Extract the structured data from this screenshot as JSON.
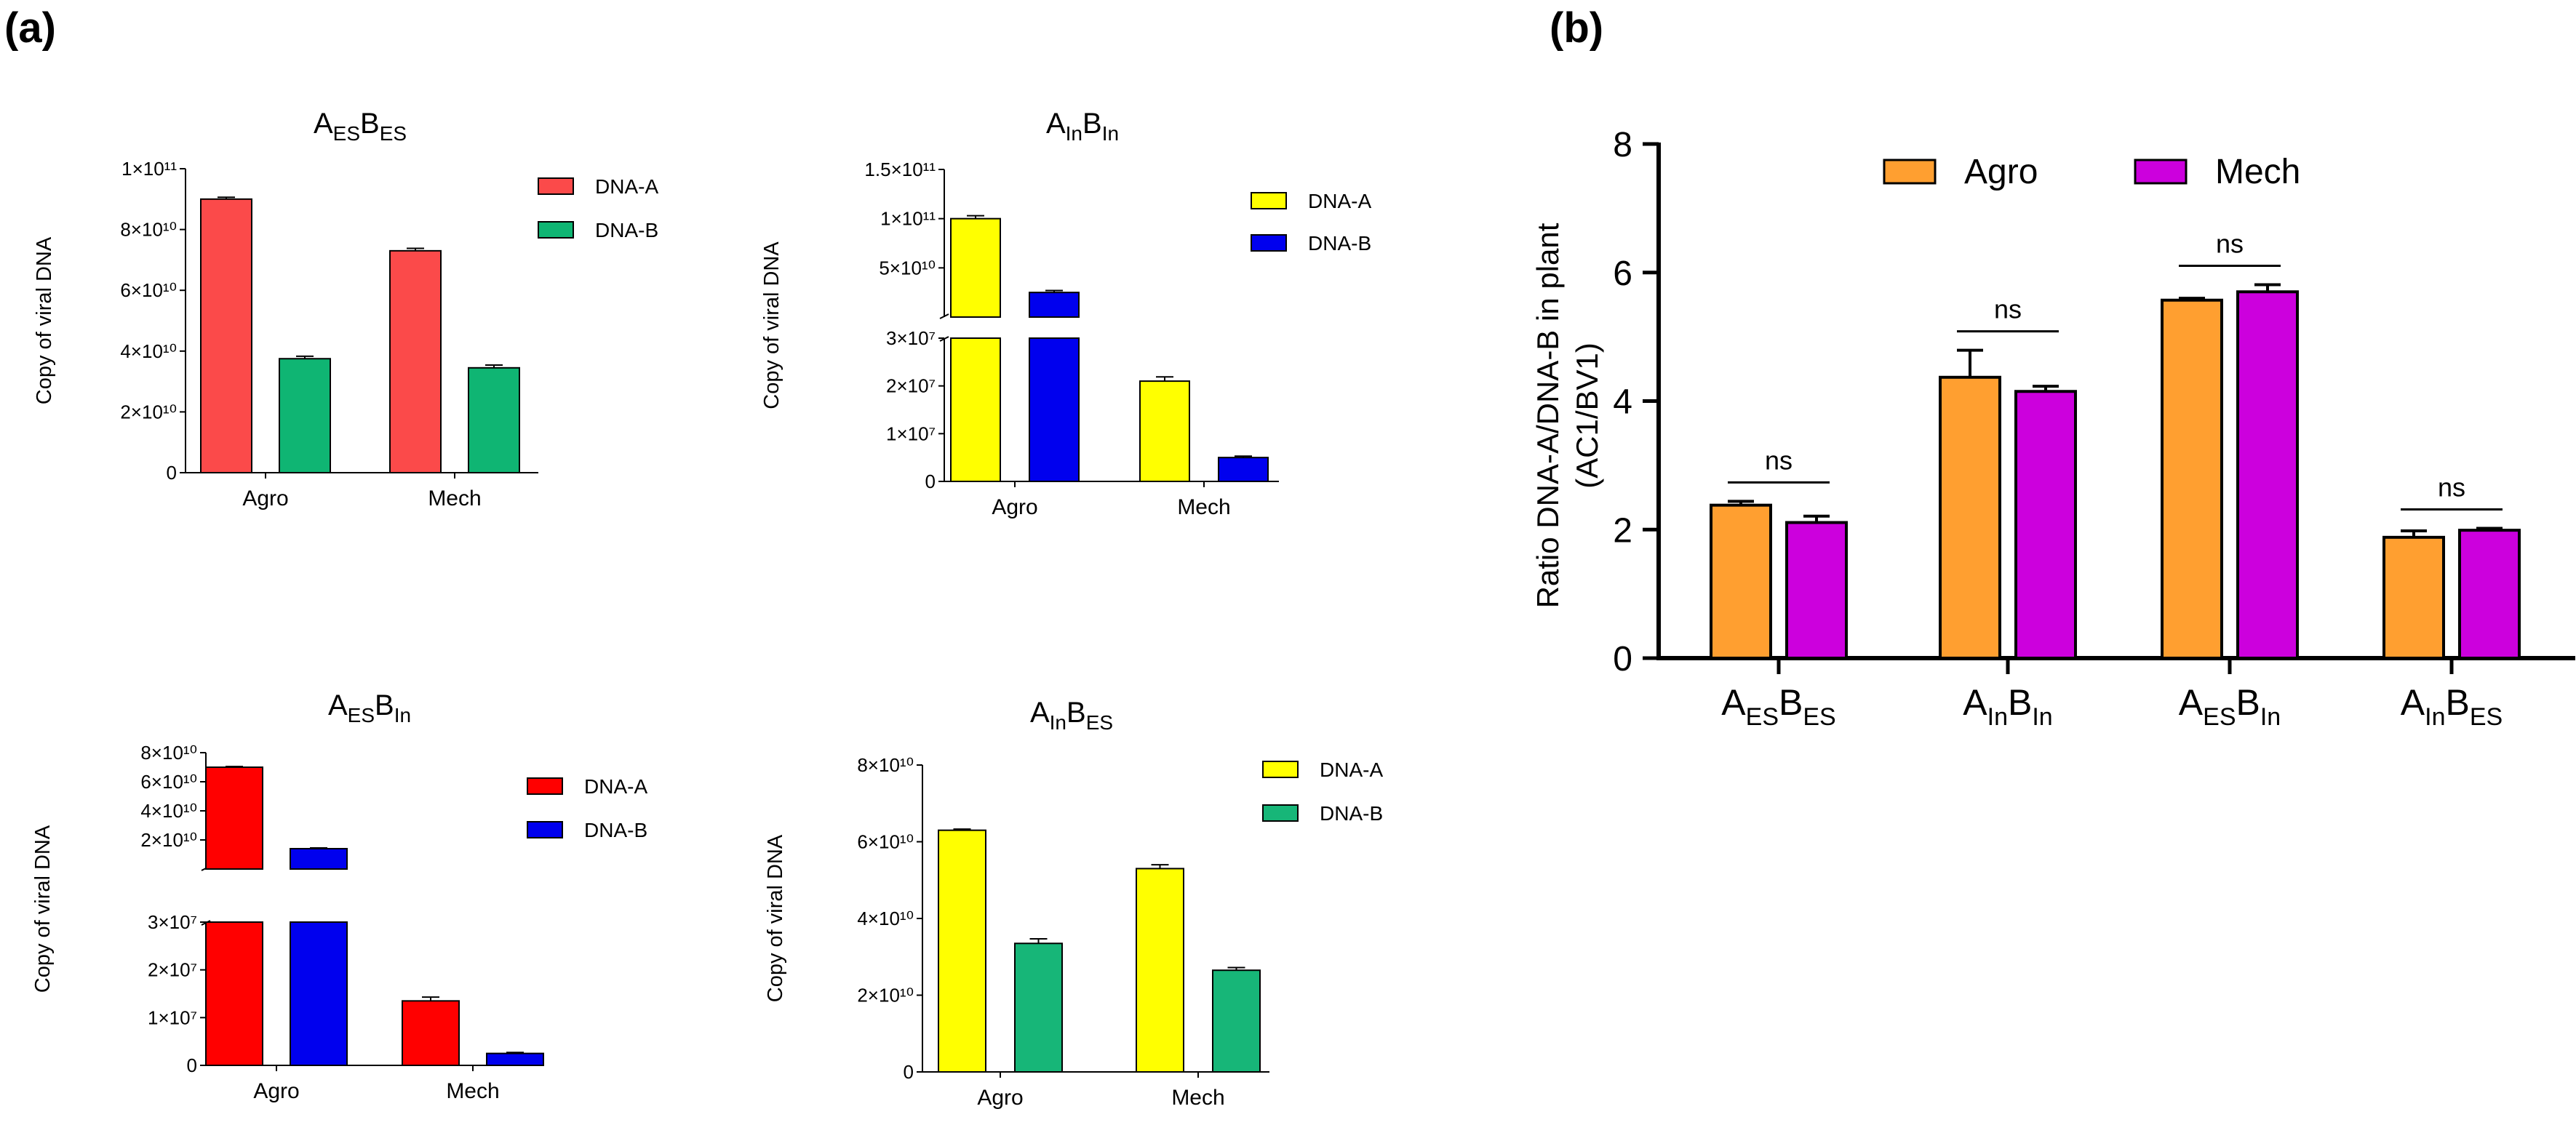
{
  "panels": {
    "a_label": "(a)",
    "b_label": "(b)"
  },
  "axis_title_copies": "Copy of viral DNA",
  "chart_data": [
    {
      "id": "aesbes",
      "type": "bar",
      "title": {
        "main1": "A",
        "sub1": "ES",
        "main2": "B",
        "sub2": "ES"
      },
      "categories": [
        "Agro",
        "Mech"
      ],
      "ylabel": "Copy of viral DNA",
      "ylim": [
        0,
        100000000000
      ],
      "yticks": [
        {
          "v": 0,
          "label": "0"
        },
        {
          "v": 20000000000,
          "label": "2×10¹⁰"
        },
        {
          "v": 40000000000,
          "label": "4×10¹⁰"
        },
        {
          "v": 60000000000,
          "label": "6×10¹⁰"
        },
        {
          "v": 80000000000,
          "label": "8×10¹⁰"
        },
        {
          "v": 100000000000,
          "label": "1×10¹¹"
        }
      ],
      "series": [
        {
          "name": "DNA-A",
          "color": "#fb4a4a",
          "values": [
            90000000000,
            73000000000
          ],
          "errors": [
            600000000,
            800000000
          ]
        },
        {
          "name": "DNA-B",
          "color": "#0fb573",
          "values": [
            37500000000,
            34500000000
          ],
          "errors": [
            800000000,
            900000000
          ]
        }
      ]
    },
    {
      "id": "ainbin",
      "type": "bar",
      "title": {
        "main1": "A",
        "sub1": "In",
        "main2": "B",
        "sub2": "In"
      },
      "categories": [
        "Agro",
        "Mech"
      ],
      "ylabel": "Copy of viral DNA",
      "axis_break": true,
      "ylim_lower": [
        0,
        30000000
      ],
      "ylim_upper": [
        0,
        150000000000
      ],
      "yticks_lower": [
        {
          "v": 0,
          "label": "0"
        },
        {
          "v": 10000000,
          "label": "1×10⁷"
        },
        {
          "v": 20000000,
          "label": "2×10⁷"
        },
        {
          "v": 30000000,
          "label": "3×10⁷"
        }
      ],
      "yticks_upper": [
        {
          "v": 50000000000,
          "label": "5×10¹⁰"
        },
        {
          "v": 100000000000,
          "label": "1×10¹¹"
        },
        {
          "v": 150000000000,
          "label": "1.5×10¹¹"
        }
      ],
      "series": [
        {
          "name": "DNA-A",
          "color": "#ffff00",
          "values": [
            100000000000,
            21000000
          ],
          "errors": [
            3000000000,
            900000
          ]
        },
        {
          "name": "DNA-B",
          "color": "#0000ee",
          "values": [
            25000000000,
            5000000
          ],
          "errors": [
            2000000000,
            300000
          ]
        }
      ]
    },
    {
      "id": "aesbin",
      "type": "bar",
      "title": {
        "main1": "A",
        "sub1": "ES",
        "main2": "B",
        "sub2": "In"
      },
      "categories": [
        "Agro",
        "Mech"
      ],
      "ylabel": "Copy of viral DNA",
      "axis_break": true,
      "ylim_lower": [
        0,
        30000000
      ],
      "ylim_upper": [
        0,
        80000000000
      ],
      "yticks_lower": [
        {
          "v": 0,
          "label": "0"
        },
        {
          "v": 10000000,
          "label": "1×10⁷"
        },
        {
          "v": 20000000,
          "label": "2×10⁷"
        },
        {
          "v": 30000000,
          "label": "3×10⁷"
        }
      ],
      "yticks_upper": [
        {
          "v": 20000000000,
          "label": "2×10¹⁰"
        },
        {
          "v": 40000000000,
          "label": "4×10¹⁰"
        },
        {
          "v": 60000000000,
          "label": "6×10¹⁰"
        },
        {
          "v": 80000000000,
          "label": "8×10¹⁰"
        }
      ],
      "series": [
        {
          "name": "DNA-A",
          "color": "#ff0000",
          "values": [
            70000000000,
            13500000
          ],
          "errors": [
            500000000,
            800000
          ]
        },
        {
          "name": "DNA-B",
          "color": "#0000ee",
          "values": [
            14000000000,
            2500000
          ],
          "errors": [
            500000000,
            200000
          ]
        }
      ]
    },
    {
      "id": "ainbes",
      "type": "bar",
      "title": {
        "main1": "A",
        "sub1": "In",
        "main2": "B",
        "sub2": "ES"
      },
      "categories": [
        "Agro",
        "Mech"
      ],
      "ylabel": "Copy of viral DNA",
      "ylim": [
        0,
        80000000000
      ],
      "yticks": [
        {
          "v": 0,
          "label": "0"
        },
        {
          "v": 20000000000,
          "label": "2×10¹⁰"
        },
        {
          "v": 40000000000,
          "label": "4×10¹⁰"
        },
        {
          "v": 60000000000,
          "label": "6×10¹⁰"
        },
        {
          "v": 80000000000,
          "label": "8×10¹⁰"
        }
      ],
      "series": [
        {
          "name": "DNA-A",
          "color": "#ffff00",
          "values": [
            63000000000,
            53000000000
          ],
          "errors": [
            300000000,
            1000000000
          ]
        },
        {
          "name": "DNA-B",
          "color": "#17b678",
          "values": [
            33500000000,
            26500000000
          ],
          "errors": [
            1200000000,
            700000000
          ]
        }
      ]
    },
    {
      "id": "ratio",
      "type": "bar",
      "title": "",
      "ylabel_line1": "Ratio DNA-A/DNA-B in plant",
      "ylabel_line2": "(AC1/BV1)",
      "ylim": [
        0,
        8
      ],
      "yticks": [
        {
          "v": 0,
          "label": "0"
        },
        {
          "v": 2,
          "label": "2"
        },
        {
          "v": 4,
          "label": "4"
        },
        {
          "v": 6,
          "label": "6"
        },
        {
          "v": 8,
          "label": "8"
        }
      ],
      "categories": [
        {
          "m1": "A",
          "s1": "ES",
          "m2": "B",
          "s2": "ES"
        },
        {
          "m1": "A",
          "s1": "In",
          "m2": "B",
          "s2": "In"
        },
        {
          "m1": "A",
          "s1": "ES",
          "m2": "B",
          "s2": "In"
        },
        {
          "m1": "A",
          "s1": "In",
          "m2": "B",
          "s2": "ES"
        }
      ],
      "significance": [
        "ns",
        "ns",
        "ns",
        "ns"
      ],
      "series": [
        {
          "name": "Agro",
          "color": "#ff9f30",
          "values": [
            2.38,
            4.37,
            5.57,
            1.88
          ],
          "errors": [
            0.06,
            0.42,
            0.03,
            0.1
          ]
        },
        {
          "name": "Mech",
          "color": "#cc00dd",
          "values": [
            2.11,
            4.15,
            5.7,
            1.99
          ],
          "errors": [
            0.1,
            0.08,
            0.11,
            0.03
          ]
        }
      ]
    }
  ]
}
